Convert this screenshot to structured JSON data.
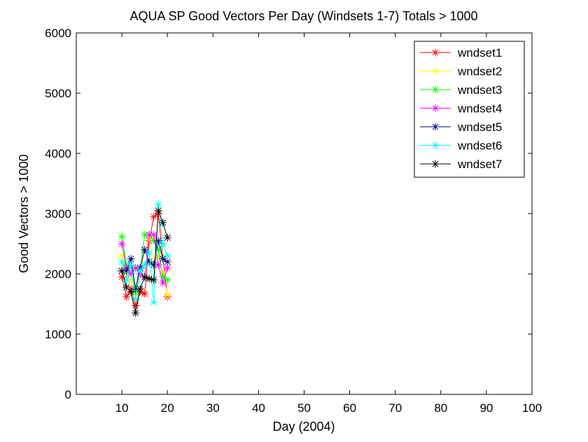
{
  "chart_data": {
    "type": "line",
    "title": "AQUA SP Good Vectors Per Day (Windsets 1-7) Totals > 1000",
    "xlabel": "Day (2004)",
    "ylabel": "Good Vectors > 1000",
    "xlim": [
      0,
      100
    ],
    "ylim": [
      0,
      6000
    ],
    "xticks": [
      10,
      20,
      30,
      40,
      50,
      60,
      70,
      80,
      90,
      100
    ],
    "yticks": [
      0,
      1000,
      2000,
      3000,
      4000,
      5000,
      6000
    ],
    "grid": false,
    "legend_position": "top-right",
    "marker": "asterisk",
    "x": [
      10,
      11,
      12,
      13,
      14,
      15,
      16,
      17,
      18,
      19,
      20
    ],
    "series": [
      {
        "name": "wndset1",
        "color": "#ff0000",
        "values": [
          1950,
          1620,
          1750,
          1470,
          1700,
          1670,
          2550,
          2950,
          3000,
          2250,
          1620
        ]
      },
      {
        "name": "wndset2",
        "color": "#ffff00",
        "values": [
          2300,
          2000,
          1900,
          1650,
          2000,
          2400,
          2600,
          2150,
          2300,
          2000,
          1650
        ]
      },
      {
        "name": "wndset3",
        "color": "#00ff00",
        "values": [
          2620,
          2150,
          2100,
          1720,
          2050,
          2650,
          2650,
          2550,
          2400,
          1950,
          1900
        ]
      },
      {
        "name": "wndset4",
        "color": "#ff00ff",
        "values": [
          2500,
          2100,
          2000,
          2100,
          2000,
          1950,
          2650,
          2650,
          2150,
          1850,
          2100
        ]
      },
      {
        "name": "wndset5",
        "color": "#000080",
        "values": [
          2050,
          2050,
          2250,
          1750,
          2100,
          2400,
          2200,
          2150,
          2550,
          2250,
          2200
        ]
      },
      {
        "name": "wndset6",
        "color": "#00ffff",
        "values": [
          2200,
          1900,
          2150,
          1580,
          2050,
          2150,
          2350,
          1530,
          3150,
          2500,
          2300
        ]
      },
      {
        "name": "wndset7",
        "color": "#000000",
        "values": [
          2050,
          1780,
          1700,
          1350,
          1750,
          1950,
          1920,
          1900,
          3050,
          2850,
          2600
        ]
      }
    ]
  }
}
